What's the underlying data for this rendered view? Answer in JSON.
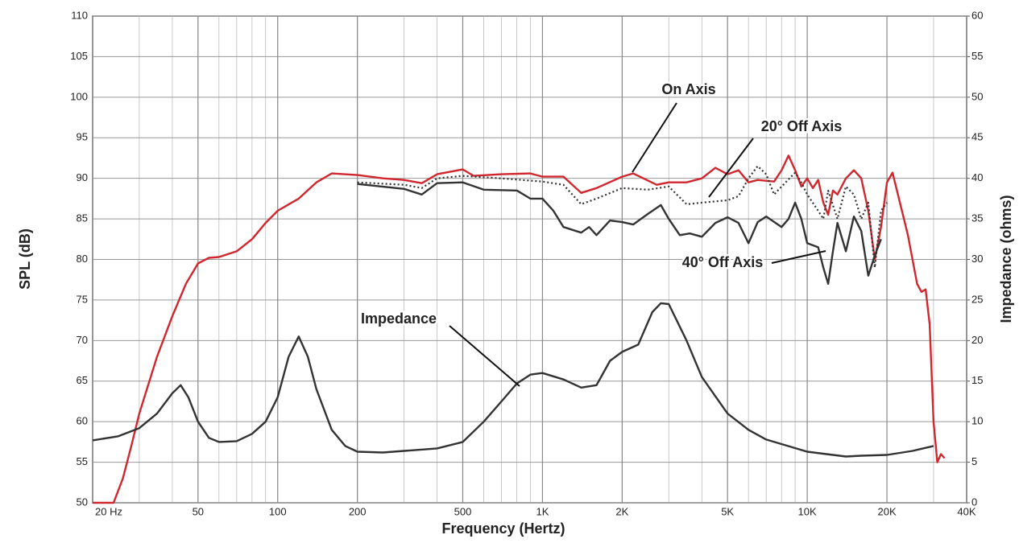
{
  "chart_data": {
    "type": "line",
    "xlabel": "Frequency (Hertz)",
    "ylabel": "SPL (dB)",
    "y2label": "Impedance (ohms)",
    "xscale": "log",
    "grid": true,
    "minor_grid": true,
    "xlim": [
      20,
      40000
    ],
    "ylim": [
      50,
      110
    ],
    "y2lim": [
      0,
      60
    ],
    "xticks": [
      {
        "value": 20,
        "label": "20 Hz"
      },
      50,
      100,
      200,
      500,
      {
        "value": 1000,
        "label": "1K"
      },
      {
        "value": 2000,
        "label": "2K"
      },
      {
        "value": 5000,
        "label": "5K"
      },
      {
        "value": 10000,
        "label": "10K"
      },
      {
        "value": 20000,
        "label": "20K"
      },
      {
        "value": 40000,
        "label": "40K"
      }
    ],
    "yticks": [
      50,
      55,
      60,
      65,
      70,
      75,
      80,
      85,
      90,
      95,
      100,
      105,
      110
    ],
    "y2ticks": [
      0,
      5,
      10,
      15,
      20,
      25,
      30,
      35,
      40,
      45,
      50,
      55,
      60
    ],
    "series": [
      {
        "name": "On Axis",
        "color": "#d0262e",
        "style": "solid",
        "x": [
          20,
          24,
          26,
          28,
          30,
          35,
          40,
          45,
          50,
          55,
          60,
          70,
          80,
          90,
          100,
          120,
          140,
          160,
          200,
          250,
          300,
          350,
          400,
          500,
          550,
          700,
          900,
          1000,
          1200,
          1400,
          1600,
          2000,
          2200,
          2700,
          3000,
          3500,
          4000,
          4500,
          5000,
          5500,
          6000,
          6500,
          7500,
          8000,
          8500,
          9000,
          9500,
          10000,
          10500,
          11000,
          11500,
          12000,
          12500,
          13000,
          14000,
          15000,
          16000,
          17000,
          18000,
          19000,
          20000,
          21000,
          22000,
          24000,
          26000,
          27000,
          28000,
          29000,
          30000,
          31000,
          32000,
          33000
        ],
        "values": [
          50,
          50,
          53,
          57,
          61,
          68,
          73,
          77,
          79.5,
          80.2,
          80.3,
          81,
          82.5,
          84.5,
          86,
          87.5,
          89.5,
          90.6,
          90.4,
          90,
          89.8,
          89.4,
          90.5,
          91.1,
          90.3,
          90.5,
          90.6,
          90.2,
          90.2,
          88.2,
          88.8,
          90.2,
          90.6,
          89.2,
          89.5,
          89.5,
          90,
          91.3,
          90.5,
          91,
          89.5,
          89.8,
          89.6,
          91,
          92.8,
          91,
          89,
          90,
          88.8,
          89.8,
          87,
          85.5,
          88.5,
          88,
          90,
          91,
          90,
          86,
          80,
          84,
          89.5,
          90.7,
          88,
          83,
          77,
          76,
          76.3,
          72,
          60,
          55,
          56,
          55.5
        ]
      },
      {
        "name": "20° Off Axis",
        "color": "#333333",
        "style": "dotted",
        "x": [
          200,
          300,
          350,
          400,
          500,
          700,
          1000,
          1200,
          1400,
          1600,
          2000,
          2500,
          3000,
          3500,
          4000,
          5000,
          5500,
          6000,
          6500,
          7000,
          7500,
          8000,
          9000,
          9500,
          10000,
          11000,
          11500,
          12000,
          13000,
          14000,
          15000,
          16000,
          17000,
          18000,
          19000,
          20000
        ],
        "values": [
          89.5,
          89.2,
          88.8,
          90,
          90.3,
          90,
          89.6,
          89.2,
          86.8,
          87.5,
          88.8,
          88.6,
          89,
          86.8,
          87,
          87.3,
          87.8,
          90,
          91.5,
          90.5,
          88,
          89,
          90.7,
          89.5,
          88,
          86,
          85,
          88.5,
          85,
          89,
          88,
          85,
          87,
          79,
          86,
          87
        ]
      },
      {
        "name": "40° Off Axis",
        "color": "#333333",
        "style": "solid",
        "x": [
          200,
          300,
          350,
          400,
          500,
          600,
          800,
          900,
          1000,
          1100,
          1200,
          1400,
          1500,
          1600,
          1800,
          2000,
          2200,
          2500,
          2800,
          3000,
          3300,
          3600,
          4000,
          4500,
          5000,
          5500,
          6000,
          6500,
          7000,
          8000,
          8500,
          9000,
          9500,
          10000,
          11000,
          11500,
          12000,
          12500,
          13000,
          14000,
          15000,
          16000,
          17000,
          18000,
          19000
        ],
        "values": [
          89.3,
          88.7,
          88,
          89.4,
          89.5,
          88.6,
          88.5,
          87.5,
          87.5,
          86,
          84,
          83.3,
          84,
          83,
          84.8,
          84.6,
          84.3,
          85.6,
          86.7,
          85,
          83,
          83.2,
          82.8,
          84.5,
          85.2,
          84.5,
          82,
          84.6,
          85.3,
          84,
          85,
          87,
          85,
          82,
          81.5,
          79,
          77,
          81,
          84.5,
          81,
          85.3,
          83.5,
          78,
          80.5,
          82.5
        ]
      },
      {
        "name": "Impedance",
        "color": "#333333",
        "style": "solid",
        "axis": "y2",
        "x": [
          20,
          25,
          30,
          35,
          40,
          43,
          46,
          50,
          55,
          60,
          70,
          80,
          90,
          100,
          110,
          120,
          130,
          140,
          160,
          180,
          200,
          250,
          300,
          400,
          500,
          600,
          700,
          800,
          900,
          1000,
          1200,
          1400,
          1600,
          1800,
          2000,
          2300,
          2600,
          2800,
          3000,
          3500,
          4000,
          5000,
          6000,
          7000,
          10000,
          14000,
          16000,
          20000,
          25000,
          30000
        ],
        "values": [
          7.7,
          8.2,
          9.2,
          11,
          13.5,
          14.5,
          13,
          10,
          8,
          7.5,
          7.6,
          8.5,
          10,
          13,
          18,
          20.5,
          18,
          14,
          9,
          7,
          6.3,
          6.2,
          6.4,
          6.7,
          7.5,
          10,
          12.5,
          14.7,
          15.8,
          16,
          15.2,
          14.2,
          14.5,
          17.5,
          18.6,
          19.5,
          23.5,
          24.6,
          24.5,
          20,
          15.5,
          11,
          9,
          7.8,
          6.3,
          5.7,
          5.8,
          5.9,
          6.4,
          7
        ]
      }
    ]
  }
}
